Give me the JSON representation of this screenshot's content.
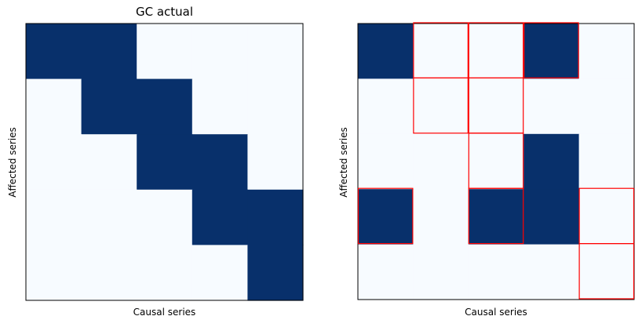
{
  "chart_data": [
    {
      "type": "heatmap",
      "title": "GC actual",
      "xlabel": "Causal series",
      "ylabel": "Affected series",
      "rows": 5,
      "cols": 5,
      "colors": {
        "on": "#08306b",
        "off": "#f7fbff",
        "highlight": "#ff0000"
      },
      "matrix": [
        [
          1,
          1,
          0,
          0,
          0
        ],
        [
          0,
          1,
          1,
          0,
          0
        ],
        [
          0,
          0,
          1,
          1,
          0
        ],
        [
          0,
          0,
          0,
          1,
          1
        ],
        [
          0,
          0,
          0,
          0,
          1
        ]
      ],
      "highlights": []
    },
    {
      "type": "heatmap",
      "title": "",
      "xlabel": "Causal series",
      "ylabel": "Affected series",
      "rows": 5,
      "cols": 5,
      "colors": {
        "on": "#08306b",
        "off": "#f7fbff",
        "highlight": "#ff0000"
      },
      "matrix": [
        [
          1,
          0,
          0,
          1,
          0
        ],
        [
          0,
          0,
          0,
          0,
          0
        ],
        [
          0,
          0,
          0,
          1,
          0
        ],
        [
          1,
          0,
          1,
          1,
          0
        ],
        [
          0,
          0,
          0,
          0,
          0
        ]
      ],
      "highlights": [
        [
          0,
          1
        ],
        [
          0,
          2
        ],
        [
          0,
          3
        ],
        [
          1,
          1
        ],
        [
          1,
          2
        ],
        [
          2,
          2
        ],
        [
          3,
          0
        ],
        [
          3,
          2
        ],
        [
          3,
          4
        ],
        [
          4,
          4
        ]
      ]
    }
  ]
}
